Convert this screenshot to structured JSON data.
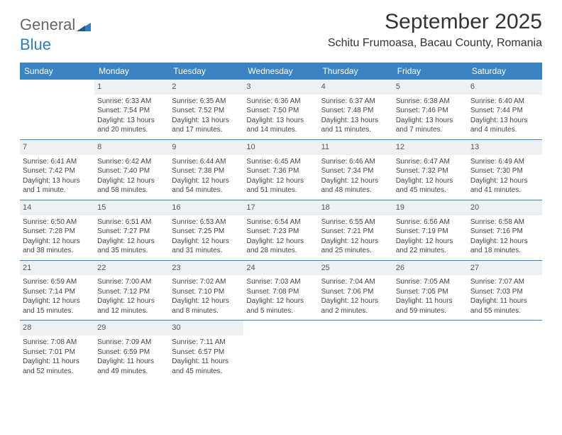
{
  "logo": {
    "part1": "General",
    "part2": "Blue"
  },
  "title": "September 2025",
  "subtitle": "Schitu Frumoasa, Bacau County, Romania",
  "colors": {
    "header_bg": "#3b84c4",
    "header_text": "#ffffff",
    "daynum_bg": "#eef1f3",
    "logo_blue": "#2f7bbf",
    "text": "#333333"
  },
  "dayNames": [
    "Sunday",
    "Monday",
    "Tuesday",
    "Wednesday",
    "Thursday",
    "Friday",
    "Saturday"
  ],
  "weeks": [
    [
      {
        "empty": true
      },
      {
        "n": "1",
        "sr": "Sunrise: 6:33 AM",
        "ss": "Sunset: 7:54 PM",
        "dl": "Daylight: 13 hours and 20 minutes."
      },
      {
        "n": "2",
        "sr": "Sunrise: 6:35 AM",
        "ss": "Sunset: 7:52 PM",
        "dl": "Daylight: 13 hours and 17 minutes."
      },
      {
        "n": "3",
        "sr": "Sunrise: 6:36 AM",
        "ss": "Sunset: 7:50 PM",
        "dl": "Daylight: 13 hours and 14 minutes."
      },
      {
        "n": "4",
        "sr": "Sunrise: 6:37 AM",
        "ss": "Sunset: 7:48 PM",
        "dl": "Daylight: 13 hours and 11 minutes."
      },
      {
        "n": "5",
        "sr": "Sunrise: 6:38 AM",
        "ss": "Sunset: 7:46 PM",
        "dl": "Daylight: 13 hours and 7 minutes."
      },
      {
        "n": "6",
        "sr": "Sunrise: 6:40 AM",
        "ss": "Sunset: 7:44 PM",
        "dl": "Daylight: 13 hours and 4 minutes."
      }
    ],
    [
      {
        "n": "7",
        "sr": "Sunrise: 6:41 AM",
        "ss": "Sunset: 7:42 PM",
        "dl": "Daylight: 13 hours and 1 minute."
      },
      {
        "n": "8",
        "sr": "Sunrise: 6:42 AM",
        "ss": "Sunset: 7:40 PM",
        "dl": "Daylight: 12 hours and 58 minutes."
      },
      {
        "n": "9",
        "sr": "Sunrise: 6:44 AM",
        "ss": "Sunset: 7:38 PM",
        "dl": "Daylight: 12 hours and 54 minutes."
      },
      {
        "n": "10",
        "sr": "Sunrise: 6:45 AM",
        "ss": "Sunset: 7:36 PM",
        "dl": "Daylight: 12 hours and 51 minutes."
      },
      {
        "n": "11",
        "sr": "Sunrise: 6:46 AM",
        "ss": "Sunset: 7:34 PM",
        "dl": "Daylight: 12 hours and 48 minutes."
      },
      {
        "n": "12",
        "sr": "Sunrise: 6:47 AM",
        "ss": "Sunset: 7:32 PM",
        "dl": "Daylight: 12 hours and 45 minutes."
      },
      {
        "n": "13",
        "sr": "Sunrise: 6:49 AM",
        "ss": "Sunset: 7:30 PM",
        "dl": "Daylight: 12 hours and 41 minutes."
      }
    ],
    [
      {
        "n": "14",
        "sr": "Sunrise: 6:50 AM",
        "ss": "Sunset: 7:28 PM",
        "dl": "Daylight: 12 hours and 38 minutes."
      },
      {
        "n": "15",
        "sr": "Sunrise: 6:51 AM",
        "ss": "Sunset: 7:27 PM",
        "dl": "Daylight: 12 hours and 35 minutes."
      },
      {
        "n": "16",
        "sr": "Sunrise: 6:53 AM",
        "ss": "Sunset: 7:25 PM",
        "dl": "Daylight: 12 hours and 31 minutes."
      },
      {
        "n": "17",
        "sr": "Sunrise: 6:54 AM",
        "ss": "Sunset: 7:23 PM",
        "dl": "Daylight: 12 hours and 28 minutes."
      },
      {
        "n": "18",
        "sr": "Sunrise: 6:55 AM",
        "ss": "Sunset: 7:21 PM",
        "dl": "Daylight: 12 hours and 25 minutes."
      },
      {
        "n": "19",
        "sr": "Sunrise: 6:56 AM",
        "ss": "Sunset: 7:19 PM",
        "dl": "Daylight: 12 hours and 22 minutes."
      },
      {
        "n": "20",
        "sr": "Sunrise: 6:58 AM",
        "ss": "Sunset: 7:16 PM",
        "dl": "Daylight: 12 hours and 18 minutes."
      }
    ],
    [
      {
        "n": "21",
        "sr": "Sunrise: 6:59 AM",
        "ss": "Sunset: 7:14 PM",
        "dl": "Daylight: 12 hours and 15 minutes."
      },
      {
        "n": "22",
        "sr": "Sunrise: 7:00 AM",
        "ss": "Sunset: 7:12 PM",
        "dl": "Daylight: 12 hours and 12 minutes."
      },
      {
        "n": "23",
        "sr": "Sunrise: 7:02 AM",
        "ss": "Sunset: 7:10 PM",
        "dl": "Daylight: 12 hours and 8 minutes."
      },
      {
        "n": "24",
        "sr": "Sunrise: 7:03 AM",
        "ss": "Sunset: 7:08 PM",
        "dl": "Daylight: 12 hours and 5 minutes."
      },
      {
        "n": "25",
        "sr": "Sunrise: 7:04 AM",
        "ss": "Sunset: 7:06 PM",
        "dl": "Daylight: 12 hours and 2 minutes."
      },
      {
        "n": "26",
        "sr": "Sunrise: 7:05 AM",
        "ss": "Sunset: 7:05 PM",
        "dl": "Daylight: 11 hours and 59 minutes."
      },
      {
        "n": "27",
        "sr": "Sunrise: 7:07 AM",
        "ss": "Sunset: 7:03 PM",
        "dl": "Daylight: 11 hours and 55 minutes."
      }
    ],
    [
      {
        "n": "28",
        "sr": "Sunrise: 7:08 AM",
        "ss": "Sunset: 7:01 PM",
        "dl": "Daylight: 11 hours and 52 minutes."
      },
      {
        "n": "29",
        "sr": "Sunrise: 7:09 AM",
        "ss": "Sunset: 6:59 PM",
        "dl": "Daylight: 11 hours and 49 minutes."
      },
      {
        "n": "30",
        "sr": "Sunrise: 7:11 AM",
        "ss": "Sunset: 6:57 PM",
        "dl": "Daylight: 11 hours and 45 minutes."
      },
      {
        "empty": true
      },
      {
        "empty": true
      },
      {
        "empty": true
      },
      {
        "empty": true
      }
    ]
  ]
}
